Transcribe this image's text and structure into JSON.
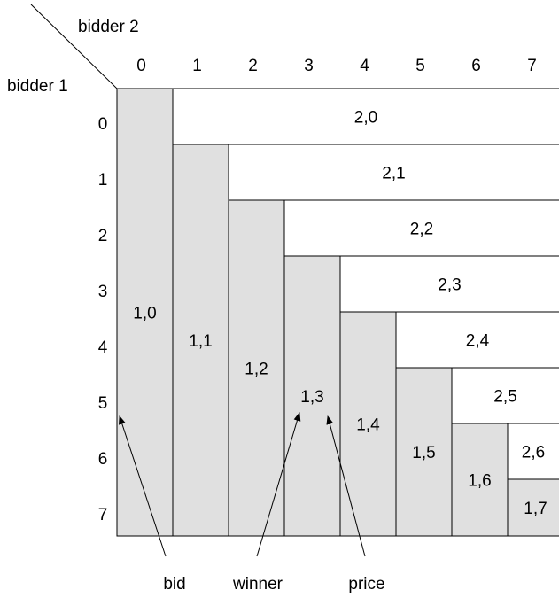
{
  "axis_labels": {
    "bidder2": "bidder 2",
    "bidder1": "bidder 1"
  },
  "columns": [
    "0",
    "1",
    "2",
    "3",
    "4",
    "5",
    "6",
    "7"
  ],
  "rows": [
    "0",
    "1",
    "2",
    "3",
    "4",
    "5",
    "6",
    "7"
  ],
  "regions_bidder1_wins": [
    "1,0",
    "1,1",
    "1,2",
    "1,3",
    "1,4",
    "1,5",
    "1,6",
    "1,7"
  ],
  "regions_bidder2_wins": [
    "2,0",
    "2,1",
    "2,2",
    "2,3",
    "2,4",
    "2,5",
    "2,6"
  ],
  "annotations": {
    "bid": "bid",
    "winner": "winner",
    "price": "price"
  },
  "colors": {
    "bidder1_region": "#e0e0e0",
    "bidder2_region": "#ffffff"
  }
}
